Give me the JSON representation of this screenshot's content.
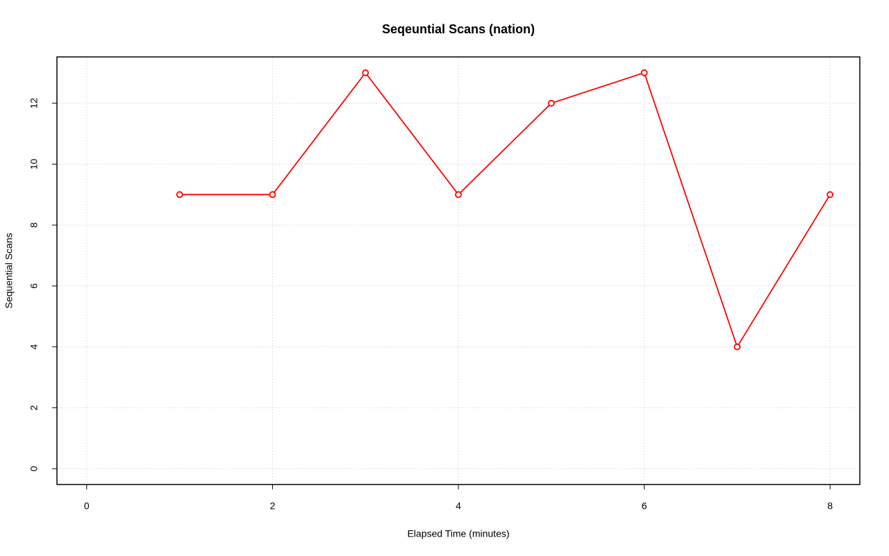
{
  "chart_data": {
    "type": "line",
    "title": "Seqeuntial Scans (nation)",
    "x_label": "Elapsed Time (minutes)",
    "y_label": "Sequential Scans",
    "x": [
      1,
      2,
      3,
      4,
      5,
      6,
      7,
      8
    ],
    "series": [
      {
        "name": "Sequential Scans",
        "color": "#ff0000",
        "values": [
          9,
          9,
          13,
          9,
          12,
          13,
          4,
          9
        ]
      }
    ],
    "xlim": [
      -0.32,
      8.32
    ],
    "ylim": [
      -0.52,
      13.52
    ],
    "xticks": [
      0,
      2,
      4,
      6,
      8
    ],
    "yticks": [
      0,
      2,
      4,
      6,
      8,
      10,
      12
    ],
    "grid": true,
    "markers": "open-circle"
  }
}
